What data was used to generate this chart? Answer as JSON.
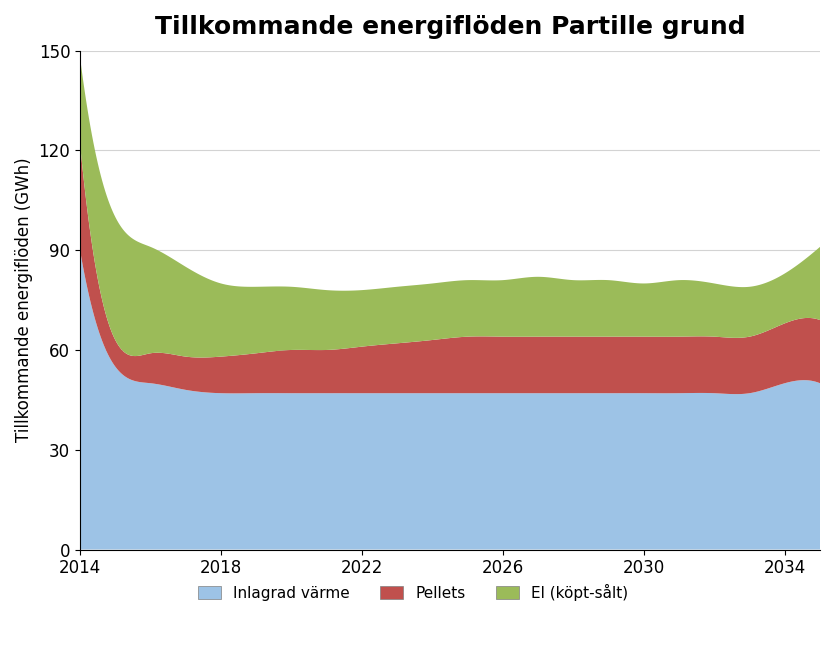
{
  "title": "Tillkommande energiflöden Partille grund",
  "ylabel": "Tillkommande energiflöden (GWh)",
  "xlabel": "",
  "years": [
    2014,
    2014.25,
    2014.5,
    2014.75,
    2015,
    2015.25,
    2015.5,
    2015.75,
    2016,
    2016.25,
    2016.5,
    2016.75,
    2017,
    2017.25,
    2017.5,
    2017.75,
    2018,
    2018.25,
    2018.5,
    2018.75,
    2019,
    2019.25,
    2019.5,
    2019.75,
    2020,
    2020.25,
    2020.5,
    2020.75,
    2021,
    2021.25,
    2021.5,
    2021.75,
    2022,
    2022.25,
    2022.5,
    2022.75,
    2023,
    2023.25,
    2023.5,
    2023.75,
    2024,
    2024.25,
    2024.5,
    2024.75,
    2025,
    2025.25,
    2025.5,
    2025.75,
    2026,
    2026.25,
    2026.5,
    2026.75,
    2027,
    2027.25,
    2027.5,
    2027.75,
    2028,
    2028.25,
    2028.5,
    2028.75,
    2029,
    2029.25,
    2029.5,
    2029.75,
    2030,
    2030.25,
    2030.5,
    2030.75,
    2031,
    2031.25,
    2031.5,
    2031.75,
    2032,
    2032.25,
    2032.5,
    2032.75,
    2033,
    2033.25,
    2033.5,
    2033.75,
    2034,
    2034.25,
    2034.5,
    2034.75,
    2035
  ],
  "inlagrad_annual": [
    90,
    56,
    52,
    50,
    49,
    48,
    48,
    48,
    47,
    47,
    47,
    47,
    47,
    47,
    47,
    47,
    47,
    47,
    47,
    47,
    47,
    47,
    47,
    47,
    47,
    47,
    47,
    47,
    47,
    47,
    47,
    47,
    47,
    47,
    47,
    47,
    47,
    47,
    47,
    47,
    47,
    47,
    47,
    47,
    47,
    47,
    47,
    47,
    47,
    47,
    47,
    47,
    47,
    47,
    47,
    47,
    47,
    47,
    47,
    47,
    47,
    47,
    47,
    47,
    47,
    47,
    47,
    47,
    47,
    47,
    47,
    47,
    47,
    47,
    47,
    47,
    47,
    47,
    47,
    47,
    47,
    47,
    47,
    47,
    47
  ],
  "pellets_annual": [
    32,
    14,
    9,
    8,
    8,
    8,
    9,
    9,
    9,
    10,
    10,
    11,
    11,
    11,
    11,
    11,
    11,
    12,
    12,
    12,
    12,
    12,
    12,
    13,
    13,
    13,
    13,
    13,
    13,
    13,
    13,
    14,
    14,
    14,
    14,
    14,
    15,
    15,
    15,
    16,
    16,
    16,
    16,
    16,
    17,
    17,
    17,
    17,
    17,
    17,
    17,
    17,
    17,
    17,
    17,
    17,
    17,
    17,
    17,
    17,
    17,
    17,
    17,
    17,
    17,
    17,
    17,
    17,
    17,
    17,
    17,
    17,
    17,
    17,
    17,
    17,
    17,
    17,
    17,
    17,
    17,
    17,
    17,
    17,
    17
  ],
  "el_annual": [
    26,
    55,
    38,
    32,
    28,
    26,
    25,
    24,
    23,
    22,
    22,
    21,
    21,
    21,
    21,
    20,
    20,
    20,
    20,
    20,
    19,
    19,
    19,
    19,
    18,
    18,
    18,
    18,
    18,
    18,
    17,
    17,
    17,
    17,
    16,
    16,
    16,
    16,
    16,
    16,
    17,
    17,
    18,
    18,
    18,
    18,
    18,
    18,
    18,
    18,
    18,
    18,
    18,
    18,
    18,
    18,
    17,
    17,
    17,
    17,
    17,
    17,
    17,
    17,
    17,
    17,
    17,
    17,
    16,
    16,
    16,
    15,
    15,
    15,
    15,
    15,
    16,
    16,
    16,
    16,
    16,
    16,
    16,
    16,
    22
  ],
  "color_inlagrad": "#9DC3E6",
  "color_pellets": "#C0504D",
  "color_el": "#9BBB59",
  "ylim": [
    0,
    150
  ],
  "yticks": [
    0,
    30,
    60,
    90,
    120,
    150
  ],
  "xticks": [
    2014,
    2018,
    2022,
    2026,
    2030,
    2034
  ],
  "xmin": 2014,
  "xmax": 2035,
  "legend_labels": [
    "Inlagrad värme",
    "Pellets",
    "El (köpt-sålt)"
  ],
  "title_fontsize": 18,
  "label_fontsize": 12,
  "tick_fontsize": 12,
  "legend_fontsize": 11
}
